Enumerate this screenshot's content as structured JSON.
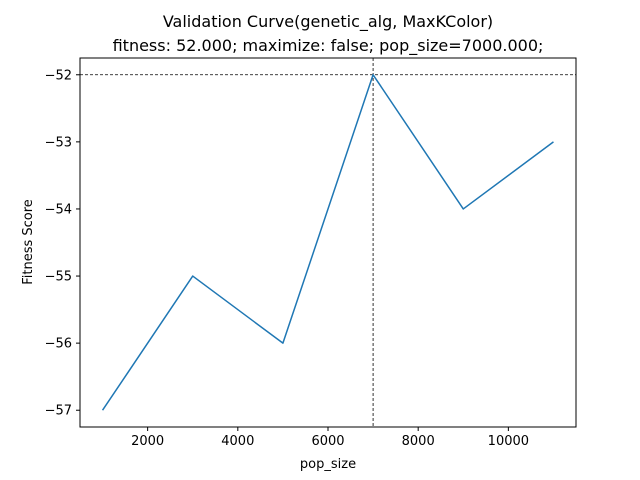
{
  "chart_data": {
    "type": "line",
    "title": "Validation Curve(genetic_alg, MaxKColor)",
    "subtitle": "fitness: 52.000; maximize: false; pop_size=7000.000;",
    "xlabel": "pop_size",
    "ylabel": "Fitness Score",
    "x": [
      1000,
      3000,
      5000,
      7000,
      9000,
      11000
    ],
    "series": [
      {
        "values": [
          -57,
          -55,
          -56,
          -52,
          -54,
          -53
        ]
      }
    ],
    "xlim": [
      500,
      11500
    ],
    "ylim": [
      -57.25,
      -51.75
    ],
    "xticks": [
      2000,
      4000,
      6000,
      8000,
      10000
    ],
    "xtick_labels": [
      "2000",
      "4000",
      "6000",
      "8000",
      "10000"
    ],
    "yticks": [
      -57,
      -56,
      -55,
      -54,
      -53,
      -52
    ],
    "ytick_labels": [
      "−57",
      "−56",
      "−55",
      "−54",
      "−53",
      "−52"
    ],
    "reference_lines": {
      "x": 7000,
      "y": -52
    },
    "grid": false,
    "legend": "none",
    "colors": {
      "line": "#1f77b4",
      "reference": "#000000",
      "axes": "#000000"
    }
  }
}
